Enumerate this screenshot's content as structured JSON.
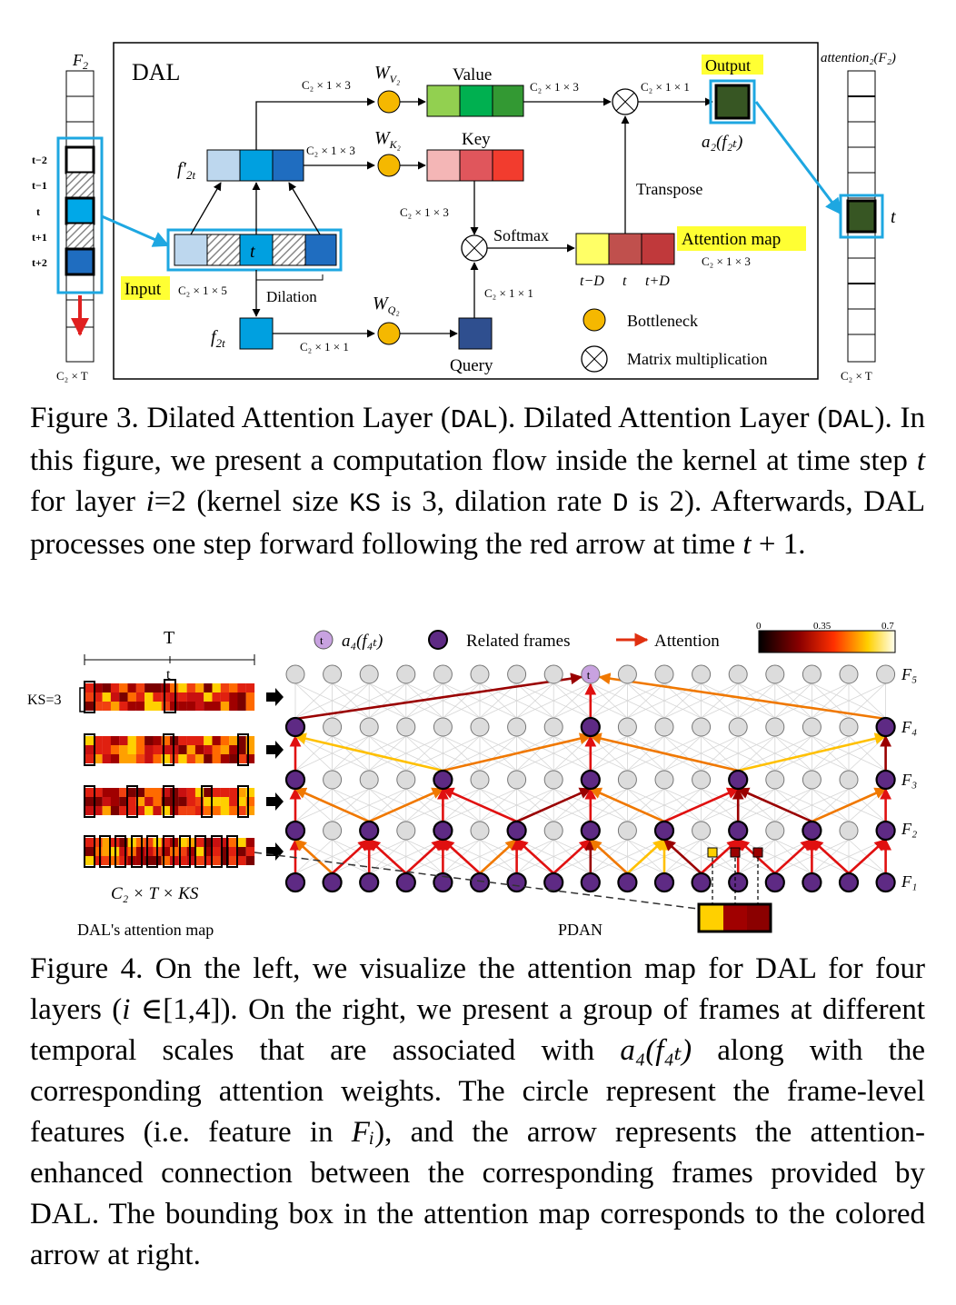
{
  "figure3": {
    "title": "DAL",
    "left_feature_label": "F",
    "left_feature_sub": "2",
    "left_dim": "C₂ × T",
    "time_labels": [
      "t−2",
      "t−1",
      "t",
      "t+1",
      "t+2"
    ],
    "input_label": "Input",
    "input_dim": "C₂ × 1 × 5",
    "input_center": "t",
    "dilation_label": "Dilation",
    "f2t_prime_label": "f′",
    "f2t_prime_sub": "2t",
    "f2t_label": "f",
    "f2t_sub": "2t",
    "dim_c2_1_3": "C₂ × 1 × 3",
    "dim_c2_1_1": "C₂ × 1 × 1",
    "dim_c2_1": "C₂ × 1 × 1",
    "wv_label": "W",
    "wv_sub": "V₂",
    "wk_label": "W",
    "wk_sub": "K₂",
    "wq_label": "W",
    "wq_sub": "Q₂",
    "value_label": "Value",
    "key_label": "Key",
    "query_label": "Query",
    "softmax_label": "Softmax",
    "transpose_label": "Transpose",
    "attention_map_label": "Attention map",
    "attention_map_dim": "C₂ × 1 × 3",
    "att_ticks": [
      "t−D",
      "t",
      "t+D"
    ],
    "output_label": "Output",
    "output_expr": "a₂(f₂ₜ)",
    "legend_bottleneck": "Bottleneck",
    "legend_matmul": "Matrix multiplication",
    "right_title": "attention₂(F₂)",
    "right_t": "t",
    "right_dim": "C₂ × T",
    "colors": {
      "highlight": "#ffff33",
      "cyan": "#1ea7e1",
      "bottleneck": "#f5b800",
      "value": [
        "#92d050",
        "#00b050",
        "#339933"
      ],
      "key": [
        "#f4b6b6",
        "#e0565c",
        "#f23c2e"
      ],
      "query": "#2f4f8f",
      "att": [
        "#ffff66",
        "#c0504d",
        "#c0393b"
      ],
      "output": "#375623"
    }
  },
  "caption3": {
    "p1": "Figure 3. Dilated Attention Layer (",
    "code1": "DAL",
    "p2": "). Dilated Attention Layer (",
    "code2": "DAL",
    "p3": "). In this figure, we present a computation flow inside the kernel at time step ",
    "t": "t",
    "p4": " for layer ",
    "i": "i",
    "p5": "=2 (kernel size ",
    "code3": "KS",
    "p6": " is 3, dilation rate ",
    "code4": "D",
    "p7": " is 2). Afterwards, DAL processes one step forward following the red arrow at time ",
    "t2": "t",
    "p8": " + 1."
  },
  "figure4": {
    "T_label": "T",
    "t_label": "t",
    "ks_label": "KS=3",
    "map_dim": "C₂ × T × KS",
    "map_caption": "DAL's  attention map",
    "pdan_label": "PDAN",
    "legend_a4": "a₄(f₄ₜ)",
    "legend_t": "t",
    "legend_related": "Related frames",
    "legend_attention": "Attention",
    "colorbar_ticks": [
      "0",
      "0.35",
      "0.7"
    ],
    "level_labels": [
      "F₅",
      "F₄",
      "F₃",
      "F₂",
      "F₁"
    ],
    "node_t": "t"
  },
  "caption4": {
    "text1": "Figure 4. On the left, we visualize the attention map for DAL for four layers (",
    "i": "i",
    "text2": " ∈[1,4]). On the right, we present a group of frames at different temporal scales that are associated with ",
    "a4": "a₄(f₄ₜ)",
    "text3": " along with the corresponding attention weights.  The circle represent the frame-level features (i.e.  feature in ",
    "Fi": "Fᵢ",
    "text4": "), and the arrow represents the attention-enhanced connection between the corresponding frames provided by DAL. The bounding box in the attention map corresponds to the colored arrow at right."
  }
}
